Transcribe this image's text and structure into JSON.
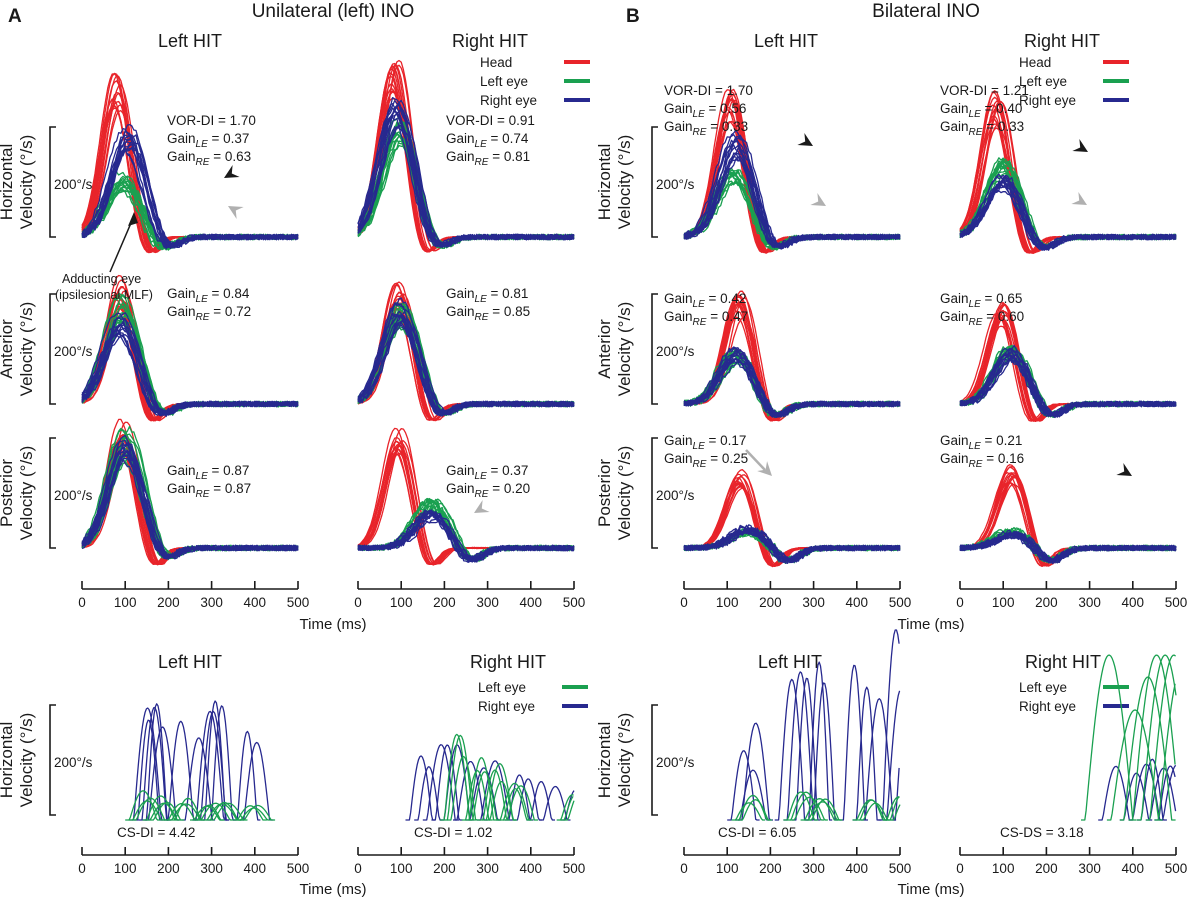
{
  "figure": {
    "panel_letters": [
      "A",
      "B"
    ],
    "sections": [
      {
        "letter": "A",
        "title": "Unilateral (left) INO"
      },
      {
        "letter": "B",
        "title": "Bilateral INO"
      }
    ],
    "colors": {
      "head": "#e8242a",
      "left_eye": "#1aa050",
      "right_eye": "#27298f",
      "annotation_gray": "#b0b0b0",
      "text": "#1a1a1a"
    },
    "scale_bar_label": "200°/s",
    "x_axis_label": "Time (ms)",
    "legend_main": [
      {
        "key": "head",
        "label": "Head"
      },
      {
        "key": "left_eye",
        "label": "Left eye"
      },
      {
        "key": "right_eye",
        "label": "Right eye"
      }
    ],
    "legend_saccade": [
      {
        "key": "left_eye",
        "label": "Left eye"
      },
      {
        "key": "right_eye",
        "label": "Right eye"
      }
    ],
    "annotation": {
      "line1": "Adducting eye",
      "line2": "(ipsilesional MLF)"
    }
  },
  "chart_data": [
    {
      "type": "line",
      "title": "Unilateral (left) INO - Left HIT - Horizontal",
      "ylabel": "Horizontal Velocity (°/s)",
      "xlabel": "Time (ms)",
      "xlim": [
        0,
        500
      ],
      "xticks": [
        "0",
        "100",
        "200",
        "300",
        "400",
        "500"
      ],
      "scale_bar": "200°/s",
      "stats": [
        "VOR-DI = 1.70",
        "GainLE = 0.37",
        "GainRE = 0.63"
      ],
      "series": [
        {
          "name": "Head",
          "peak_deg_s": 280,
          "peak_ms": 80
        },
        {
          "name": "Left eye",
          "peak_deg_s": 105,
          "peak_ms": 95
        },
        {
          "name": "Right eye",
          "peak_deg_s": 185,
          "peak_ms": 105
        }
      ]
    },
    {
      "type": "line",
      "title": "Unilateral (left) INO - Right HIT - Horizontal",
      "xlim": [
        0,
        500
      ],
      "stats": [
        "VOR-DI = 0.91",
        "GainLE = 0.74",
        "GainRE = 0.81"
      ],
      "series": [
        {
          "name": "Head",
          "peak_deg_s": 290,
          "peak_ms": 85
        },
        {
          "name": "Left eye",
          "peak_deg_s": 200,
          "peak_ms": 95
        },
        {
          "name": "Right eye",
          "peak_deg_s": 230,
          "peak_ms": 90
        }
      ]
    },
    {
      "type": "line",
      "title": "Unilateral (left) INO - Left HIT - Anterior",
      "ylabel": "Anterior Velocity (°/s)",
      "xlim": [
        0,
        500
      ],
      "stats": [
        "GainLE = 0.84",
        "GainRE = 0.72"
      ],
      "series": [
        {
          "name": "Head",
          "peak_deg_s": 210,
          "peak_ms": 90
        },
        {
          "name": "Left eye",
          "peak_deg_s": 180,
          "peak_ms": 95
        },
        {
          "name": "Right eye",
          "peak_deg_s": 150,
          "peak_ms": 90
        }
      ]
    },
    {
      "type": "line",
      "title": "Unilateral (left) INO - Right HIT - Anterior",
      "xlim": [
        0,
        500
      ],
      "stats": [
        "GainLE = 0.81",
        "GainRE = 0.85"
      ],
      "series": [
        {
          "name": "Head",
          "peak_deg_s": 205,
          "peak_ms": 95
        },
        {
          "name": "Left eye",
          "peak_deg_s": 165,
          "peak_ms": 100
        },
        {
          "name": "Right eye",
          "peak_deg_s": 170,
          "peak_ms": 100
        }
      ]
    },
    {
      "type": "line",
      "title": "Unilateral (left) INO - Left HIT - Posterior",
      "ylabel": "Posterior Velocity (°/s)",
      "xlim": [
        0,
        500
      ],
      "stats": [
        "GainLE = 0.87",
        "GainRE = 0.87"
      ],
      "series": [
        {
          "name": "Head",
          "peak_deg_s": 210,
          "peak_ms": 95
        },
        {
          "name": "Left eye",
          "peak_deg_s": 195,
          "peak_ms": 100
        },
        {
          "name": "Right eye",
          "peak_deg_s": 180,
          "peak_ms": 100
        }
      ]
    },
    {
      "type": "line",
      "title": "Unilateral (left) INO - Right HIT - Posterior",
      "xlim": [
        0,
        500
      ],
      "xticks": [
        "0",
        "100",
        "200",
        "300",
        "400",
        "500"
      ],
      "stats": [
        "GainLE = 0.37",
        "GainRE = 0.20"
      ],
      "series": [
        {
          "name": "Head",
          "peak_deg_s": 200,
          "peak_ms": 95
        },
        {
          "name": "Left eye",
          "peak_deg_s": 80,
          "peak_ms": 170
        },
        {
          "name": "Right eye",
          "peak_deg_s": 60,
          "peak_ms": 170
        }
      ]
    },
    {
      "type": "line",
      "title": "Bilateral INO - Left HIT - Horizontal",
      "ylabel": "Horizontal Velocity (°/s)",
      "xlim": [
        0,
        500
      ],
      "stats": [
        "VOR-DI = 1.70",
        "GainLE = 0.56",
        "GainRE = 0.33"
      ],
      "series": [
        {
          "name": "Head",
          "peak_deg_s": 240,
          "peak_ms": 110
        },
        {
          "name": "Left eye",
          "peak_deg_s": 110,
          "peak_ms": 115
        },
        {
          "name": "Right eye",
          "peak_deg_s": 170,
          "peak_ms": 120
        }
      ]
    },
    {
      "type": "line",
      "title": "Bilateral INO - Right HIT - Horizontal",
      "xlim": [
        0,
        500
      ],
      "stats": [
        "VOR-DI = 1.21",
        "GainLE = 0.40",
        "GainRE = 0.33"
      ],
      "series": [
        {
          "name": "Head",
          "peak_deg_s": 240,
          "peak_ms": 85
        },
        {
          "name": "Left eye",
          "peak_deg_s": 130,
          "peak_ms": 100
        },
        {
          "name": "Right eye",
          "peak_deg_s": 100,
          "peak_ms": 100
        }
      ]
    },
    {
      "type": "line",
      "title": "Bilateral INO - Left HIT - Anterior",
      "ylabel": "Anterior Velocity (°/s)",
      "xlim": [
        0,
        500
      ],
      "stats": [
        "GainLE = 0.42",
        "GainRE = 0.47"
      ],
      "series": [
        {
          "name": "Head",
          "peak_deg_s": 190,
          "peak_ms": 130
        },
        {
          "name": "Left eye",
          "peak_deg_s": 90,
          "peak_ms": 120
        },
        {
          "name": "Right eye",
          "peak_deg_s": 90,
          "peak_ms": 120
        }
      ]
    },
    {
      "type": "line",
      "title": "Bilateral INO - Right HIT - Anterior",
      "xlim": [
        0,
        500
      ],
      "stats": [
        "GainLE = 0.65",
        "GainRE = 0.60"
      ],
      "series": [
        {
          "name": "Head",
          "peak_deg_s": 170,
          "peak_ms": 95
        },
        {
          "name": "Left eye",
          "peak_deg_s": 100,
          "peak_ms": 120
        },
        {
          "name": "Right eye",
          "peak_deg_s": 95,
          "peak_ms": 120
        }
      ]
    },
    {
      "type": "line",
      "title": "Bilateral INO - Left HIT - Posterior",
      "ylabel": "Posterior Velocity (°/s)",
      "xlim": [
        0,
        500
      ],
      "xticks": [
        "0",
        "100",
        "200",
        "300",
        "400",
        "500"
      ],
      "stats": [
        "GainLE = 0.17",
        "GainRE = 0.25"
      ],
      "series": [
        {
          "name": "Head",
          "peak_deg_s": 130,
          "peak_ms": 130
        },
        {
          "name": "Left eye",
          "peak_deg_s": 30,
          "peak_ms": 150
        },
        {
          "name": "Right eye",
          "peak_deg_s": 35,
          "peak_ms": 150
        }
      ]
    },
    {
      "type": "line",
      "title": "Bilateral INO - Right HIT - Posterior",
      "xlim": [
        0,
        500
      ],
      "xticks": [
        "0",
        "100",
        "200",
        "300",
        "400",
        "500"
      ],
      "stats": [
        "GainLE = 0.21",
        "GainRE = 0.16"
      ],
      "series": [
        {
          "name": "Head",
          "peak_deg_s": 140,
          "peak_ms": 120
        },
        {
          "name": "Left eye",
          "peak_deg_s": 30,
          "peak_ms": 120
        },
        {
          "name": "Right eye",
          "peak_deg_s": 25,
          "peak_ms": 120
        }
      ]
    },
    {
      "type": "line",
      "title": "Unilateral (left) INO - Left HIT - Saccades",
      "ylabel": "Horizontal Velocity (°/s)",
      "xlim": [
        0,
        500
      ],
      "xticks": [
        "0",
        "100",
        "200",
        "300",
        "400",
        "500"
      ],
      "stats": [
        "CS-DI = 4.42"
      ],
      "series": [
        {
          "name": "Left eye",
          "peak_deg_s": 40
        },
        {
          "name": "Right eye",
          "peak_deg_s": 200
        }
      ]
    },
    {
      "type": "line",
      "title": "Unilateral (left) INO - Right HIT - Saccades",
      "xlim": [
        0,
        500
      ],
      "xticks": [
        "0",
        "100",
        "200",
        "300",
        "400",
        "500"
      ],
      "stats": [
        "CS-DI = 1.02"
      ],
      "series": [
        {
          "name": "Left eye",
          "peak_deg_s": 150
        },
        {
          "name": "Right eye",
          "peak_deg_s": 140
        }
      ]
    },
    {
      "type": "line",
      "title": "Bilateral INO - Left HIT - Saccades",
      "ylabel": "Horizontal Velocity (°/s)",
      "xlim": [
        0,
        500
      ],
      "xticks": [
        "0",
        "100",
        "200",
        "300",
        "400",
        "500"
      ],
      "stats": [
        "CS-DI = 6.05"
      ],
      "series": [
        {
          "name": "Left eye",
          "peak_deg_s": 45
        },
        {
          "name": "Right eye",
          "peak_deg_s": 320
        }
      ]
    },
    {
      "type": "line",
      "title": "Bilateral INO - Right HIT - Saccades",
      "xlim": [
        0,
        500
      ],
      "xticks": [
        "0",
        "100",
        "200",
        "300",
        "400",
        "500"
      ],
      "stats": [
        "CS-DS = 3.18"
      ],
      "series": [
        {
          "name": "Left eye",
          "peak_deg_s": 300
        },
        {
          "name": "Right eye",
          "peak_deg_s": 100
        }
      ]
    }
  ]
}
